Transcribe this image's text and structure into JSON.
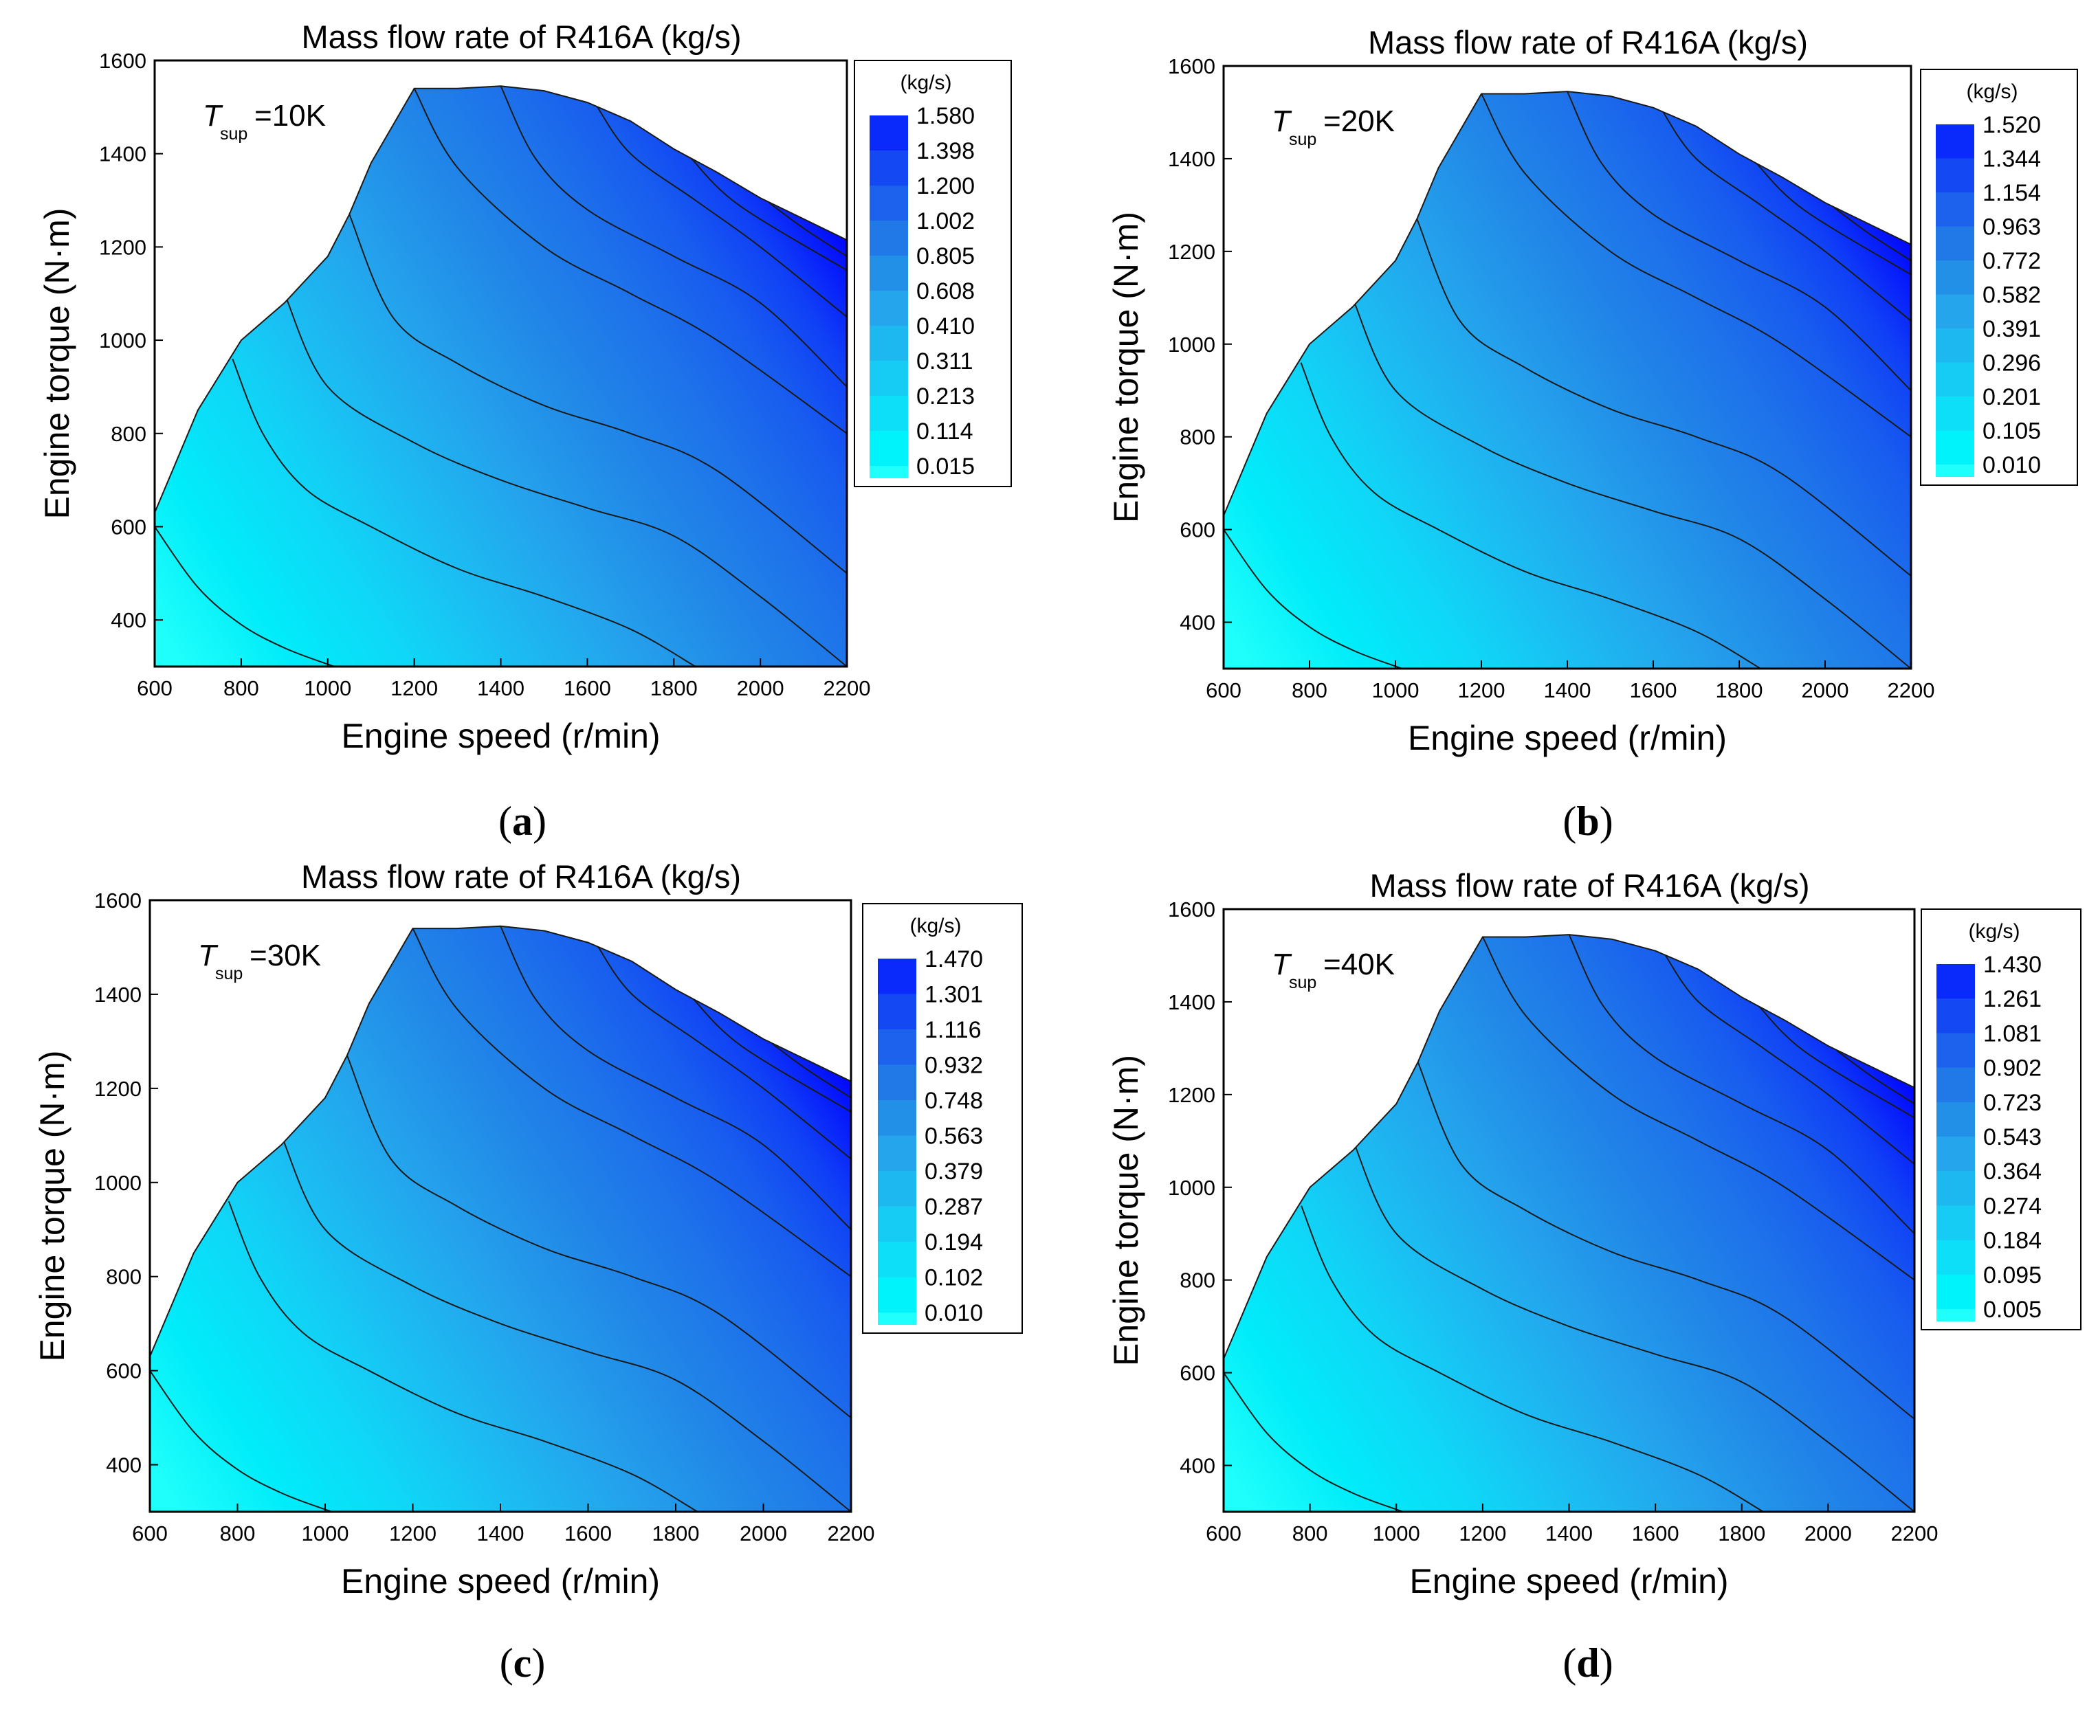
{
  "figure": {
    "panels": [
      {
        "caption": "a",
        "tsup_symbol": "T",
        "tsup_sub": "sup",
        "tsup_value": "=10K",
        "colorbar_unit": "(kg/s)",
        "levels": [
          "1.580",
          "1.398",
          "1.200",
          "1.002",
          "0.805",
          "0.608",
          "0.410",
          "0.311",
          "0.213",
          "0.114",
          "0.015"
        ]
      },
      {
        "caption": "b",
        "tsup_symbol": "T",
        "tsup_sub": "sup",
        "tsup_value": "=20K",
        "colorbar_unit": "(kg/s)",
        "levels": [
          "1.520",
          "1.344",
          "1.154",
          "0.963",
          "0.772",
          "0.582",
          "0.391",
          "0.296",
          "0.201",
          "0.105",
          "0.010"
        ]
      },
      {
        "caption": "c",
        "tsup_symbol": "T",
        "tsup_sub": "sup",
        "tsup_value": "=30K",
        "colorbar_unit": "(kg/s)",
        "levels": [
          "1.470",
          "1.301",
          "1.116",
          "0.932",
          "0.748",
          "0.563",
          "0.379",
          "0.287",
          "0.194",
          "0.102",
          "0.010"
        ]
      },
      {
        "caption": "d",
        "tsup_symbol": "T",
        "tsup_sub": "sup",
        "tsup_value": "=40K",
        "colorbar_unit": "(kg/s)",
        "levels": [
          "1.430",
          "1.261",
          "1.081",
          "0.902",
          "0.723",
          "0.543",
          "0.364",
          "0.274",
          "0.184",
          "0.095",
          "0.005"
        ]
      }
    ]
  },
  "chart_data": [
    {
      "type": "contour",
      "title": "Mass flow rate of R416A (kg/s)",
      "xlabel": "Engine speed (r/min)",
      "ylabel": "Engine torque (N·m)",
      "xlim": [
        600,
        2200
      ],
      "ylim": [
        300,
        1600
      ],
      "xticks": [
        "600",
        "800",
        "1000",
        "1200",
        "1400",
        "1600",
        "1800",
        "2000",
        "2200"
      ],
      "yticks": [
        "400",
        "600",
        "800",
        "1000",
        "1200",
        "1400",
        "1600"
      ],
      "superheat": "10K",
      "colorbar_levels": [
        1.58,
        1.398,
        1.2,
        1.002,
        0.805,
        0.608,
        0.41,
        0.311,
        0.213,
        0.114,
        0.015
      ],
      "colorbar_unit": "(kg/s)",
      "envelope": [
        [
          600,
          630
        ],
        [
          700,
          850
        ],
        [
          800,
          1000
        ],
        [
          900,
          1080
        ],
        [
          1000,
          1180
        ],
        [
          1050,
          1270
        ],
        [
          1100,
          1380
        ],
        [
          1200,
          1540
        ],
        [
          1300,
          1540
        ],
        [
          1400,
          1545
        ],
        [
          1500,
          1535
        ],
        [
          1600,
          1510
        ],
        [
          1700,
          1470
        ],
        [
          1800,
          1410
        ],
        [
          1900,
          1360
        ],
        [
          2000,
          1305
        ],
        [
          2100,
          1260
        ],
        [
          2200,
          1215
        ]
      ]
    },
    {
      "type": "contour",
      "title": "Mass flow rate of R416A (kg/s)",
      "xlabel": "Engine speed (r/min)",
      "ylabel": "Engine torque (N·m)",
      "xlim": [
        600,
        2200
      ],
      "ylim": [
        300,
        1600
      ],
      "xticks": [
        "600",
        "800",
        "1000",
        "1200",
        "1400",
        "1600",
        "1800",
        "2000",
        "2200"
      ],
      "yticks": [
        "400",
        "600",
        "800",
        "1000",
        "1200",
        "1400",
        "1600"
      ],
      "superheat": "20K",
      "colorbar_levels": [
        1.52,
        1.344,
        1.154,
        0.963,
        0.772,
        0.582,
        0.391,
        0.296,
        0.201,
        0.105,
        0.01
      ],
      "colorbar_unit": "(kg/s)",
      "envelope": [
        [
          600,
          630
        ],
        [
          700,
          850
        ],
        [
          800,
          1000
        ],
        [
          900,
          1080
        ],
        [
          1000,
          1180
        ],
        [
          1050,
          1270
        ],
        [
          1100,
          1380
        ],
        [
          1200,
          1540
        ],
        [
          1300,
          1540
        ],
        [
          1400,
          1545
        ],
        [
          1500,
          1535
        ],
        [
          1600,
          1510
        ],
        [
          1700,
          1470
        ],
        [
          1800,
          1410
        ],
        [
          1900,
          1360
        ],
        [
          2000,
          1305
        ],
        [
          2100,
          1260
        ],
        [
          2200,
          1215
        ]
      ]
    },
    {
      "type": "contour",
      "title": "Mass flow rate of R416A (kg/s)",
      "xlabel": "Engine speed (r/min)",
      "ylabel": "Engine torque (N·m)",
      "xlim": [
        600,
        2200
      ],
      "ylim": [
        300,
        1600
      ],
      "xticks": [
        "600",
        "800",
        "1000",
        "1200",
        "1400",
        "1600",
        "1800",
        "2000",
        "2200"
      ],
      "yticks": [
        "400",
        "600",
        "800",
        "1000",
        "1200",
        "1400",
        "1600"
      ],
      "superheat": "30K",
      "colorbar_levels": [
        1.47,
        1.301,
        1.116,
        0.932,
        0.748,
        0.563,
        0.379,
        0.287,
        0.194,
        0.102,
        0.01
      ],
      "colorbar_unit": "(kg/s)",
      "envelope": [
        [
          600,
          630
        ],
        [
          700,
          850
        ],
        [
          800,
          1000
        ],
        [
          900,
          1080
        ],
        [
          1000,
          1180
        ],
        [
          1050,
          1270
        ],
        [
          1100,
          1380
        ],
        [
          1200,
          1540
        ],
        [
          1300,
          1540
        ],
        [
          1400,
          1545
        ],
        [
          1500,
          1535
        ],
        [
          1600,
          1510
        ],
        [
          1700,
          1470
        ],
        [
          1800,
          1410
        ],
        [
          1900,
          1360
        ],
        [
          2000,
          1305
        ],
        [
          2100,
          1260
        ],
        [
          2200,
          1215
        ]
      ]
    },
    {
      "type": "contour",
      "title": "Mass flow rate of R416A (kg/s)",
      "xlabel": "Engine speed (r/min)",
      "ylabel": "Engine torque (N·m)",
      "xlim": [
        600,
        2200
      ],
      "ylim": [
        300,
        1600
      ],
      "xticks": [
        "600",
        "800",
        "1000",
        "1200",
        "1400",
        "1600",
        "1800",
        "2000",
        "2200"
      ],
      "yticks": [
        "400",
        "600",
        "800",
        "1000",
        "1200",
        "1400",
        "1600"
      ],
      "superheat": "40K",
      "colorbar_levels": [
        1.43,
        1.261,
        1.081,
        0.902,
        0.723,
        0.543,
        0.364,
        0.274,
        0.184,
        0.095,
        0.005
      ],
      "colorbar_unit": "(kg/s)",
      "envelope": [
        [
          600,
          630
        ],
        [
          700,
          850
        ],
        [
          800,
          1000
        ],
        [
          900,
          1080
        ],
        [
          1000,
          1180
        ],
        [
          1050,
          1270
        ],
        [
          1100,
          1380
        ],
        [
          1200,
          1540
        ],
        [
          1300,
          1540
        ],
        [
          1400,
          1545
        ],
        [
          1500,
          1535
        ],
        [
          1600,
          1510
        ],
        [
          1700,
          1470
        ],
        [
          1800,
          1410
        ],
        [
          1900,
          1360
        ],
        [
          2000,
          1305
        ],
        [
          2100,
          1260
        ],
        [
          2200,
          1215
        ]
      ]
    }
  ]
}
